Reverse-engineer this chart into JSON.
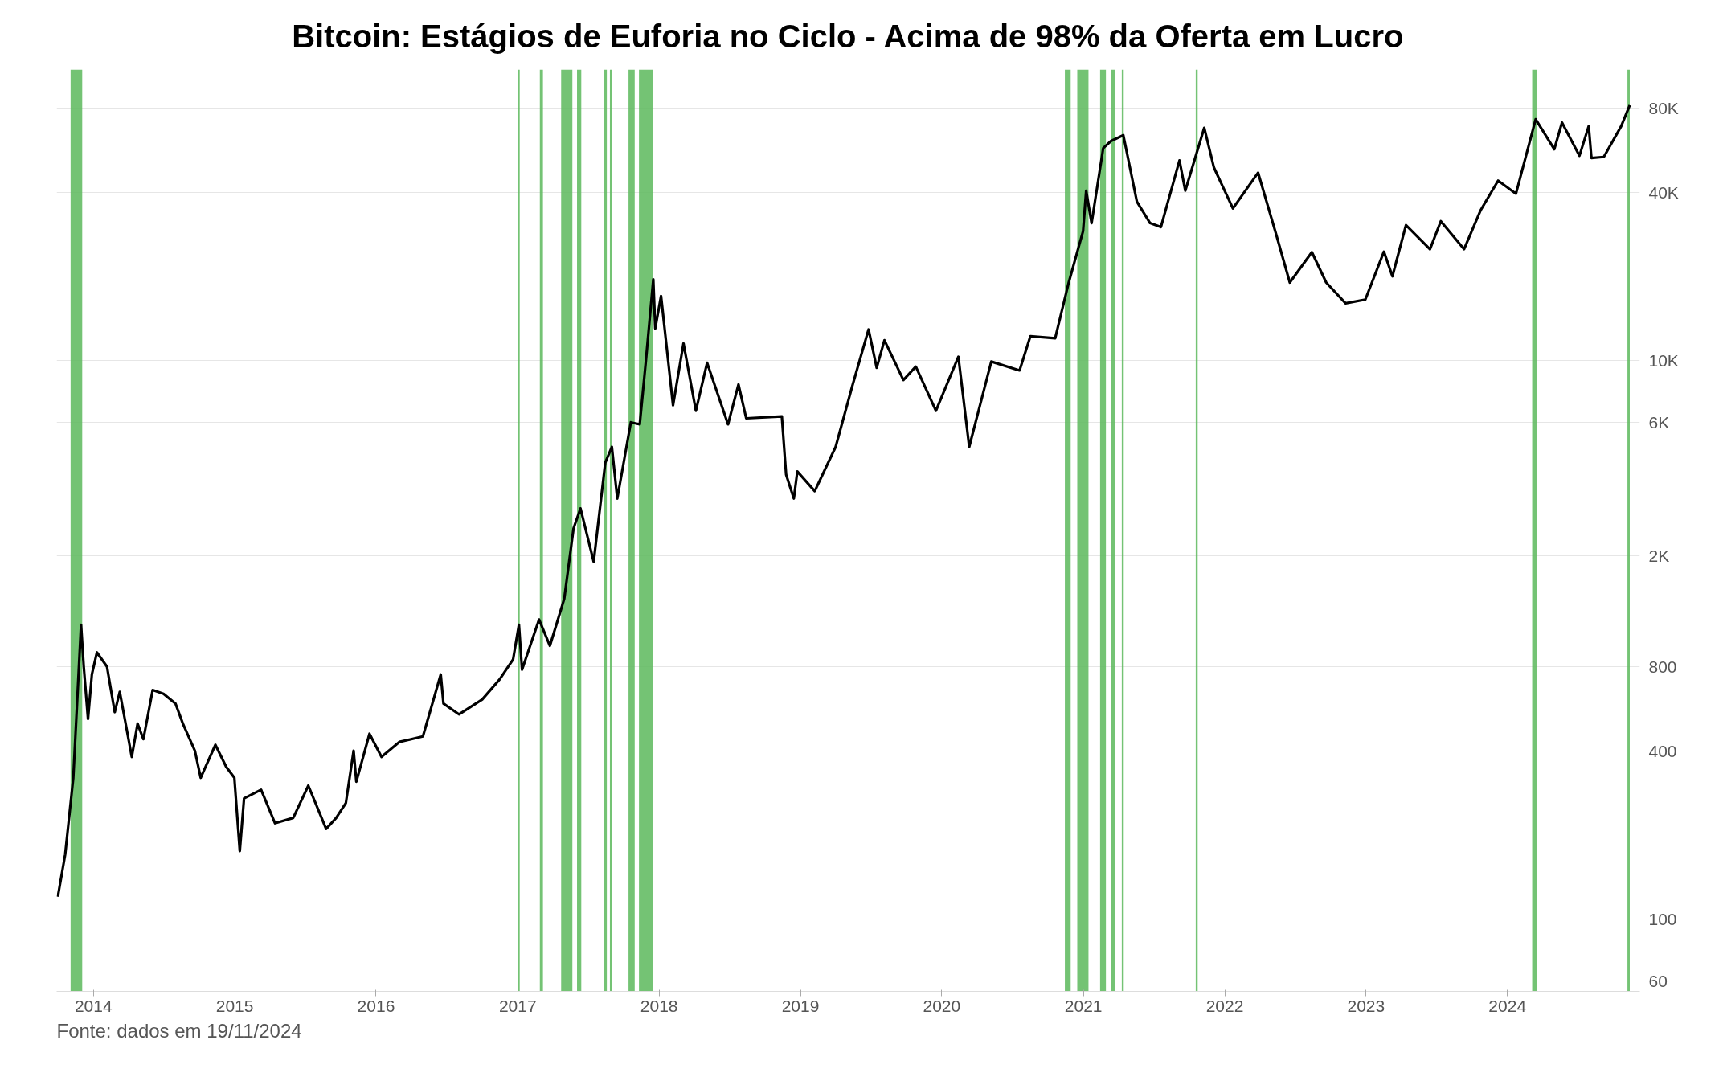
{
  "chart_data": {
    "type": "line",
    "title": "Bitcoin: Estágios de Euforia no Ciclo - Acima de 98% da Oferta em Lucro",
    "annotations": [
      "Fonte: dados em 19/11/2024"
    ],
    "log": "y",
    "grid": "y",
    "xlim": [
      "2013-09-28",
      "2024-12-08"
    ],
    "xticks": [
      {
        "value": "2014-01-01",
        "label": "2014"
      },
      {
        "value": "2015-01-01",
        "label": "2015"
      },
      {
        "value": "2016-01-01",
        "label": "2016"
      },
      {
        "value": "2017-01-01",
        "label": "2017"
      },
      {
        "value": "2018-01-01",
        "label": "2018"
      },
      {
        "value": "2019-01-01",
        "label": "2019"
      },
      {
        "value": "2020-01-01",
        "label": "2020"
      },
      {
        "value": "2021-01-01",
        "label": "2021"
      },
      {
        "value": "2022-01-01",
        "label": "2022"
      },
      {
        "value": "2023-01-01",
        "label": "2023"
      },
      {
        "value": "2024-01-01",
        "label": "2024"
      }
    ],
    "ylim": [
      55,
      110000
    ],
    "yticks": [
      60,
      100,
      400,
      800,
      {
        "value": 2000,
        "label": "2K"
      },
      {
        "value": 6000,
        "label": "6K"
      },
      {
        "value": 10000,
        "label": "10K"
      },
      {
        "value": 40000,
        "label": "40K"
      },
      {
        "value": 80000,
        "label": "80K"
      }
    ],
    "bands": [
      {
        "axis": "x",
        "from": "2013-11-03",
        "to": "2013-12-03",
        "color": "#5cb85c"
      },
      {
        "axis": "x",
        "from": "2017-01-01",
        "to": "2017-01-06",
        "color": "#5cb85c"
      },
      {
        "axis": "x",
        "from": "2017-02-27",
        "to": "2017-03-07",
        "color": "#5cb85c"
      },
      {
        "axis": "x",
        "from": "2017-04-23",
        "to": "2017-05-22",
        "color": "#5cb85c"
      },
      {
        "axis": "x",
        "from": "2017-06-03",
        "to": "2017-06-14",
        "color": "#5cb85c"
      },
      {
        "axis": "x",
        "from": "2017-08-11",
        "to": "2017-08-19",
        "color": "#5cb85c"
      },
      {
        "axis": "x",
        "from": "2017-08-27",
        "to": "2017-09-01",
        "color": "#5cb85c"
      },
      {
        "axis": "x",
        "from": "2017-10-14",
        "to": "2017-10-30",
        "color": "#5cb85c"
      },
      {
        "axis": "x",
        "from": "2017-11-10",
        "to": "2017-12-17",
        "color": "#5cb85c"
      },
      {
        "axis": "x",
        "from": "2020-11-14",
        "to": "2020-11-29",
        "color": "#5cb85c"
      },
      {
        "axis": "x",
        "from": "2020-12-16",
        "to": "2021-01-14",
        "color": "#5cb85c"
      },
      {
        "axis": "x",
        "from": "2021-02-13",
        "to": "2021-02-28",
        "color": "#5cb85c"
      },
      {
        "axis": "x",
        "from": "2021-03-14",
        "to": "2021-03-23",
        "color": "#5cb85c"
      },
      {
        "axis": "x",
        "from": "2021-04-10",
        "to": "2021-04-15",
        "color": "#5cb85c"
      },
      {
        "axis": "x",
        "from": "2021-10-18",
        "to": "2021-10-23",
        "color": "#5cb85c"
      },
      {
        "axis": "x",
        "from": "2024-03-05",
        "to": "2024-03-18",
        "color": "#5cb85c"
      },
      {
        "axis": "x",
        "from": "2024-11-06",
        "to": "2024-11-12",
        "color": "#5cb85c"
      }
    ],
    "series": [
      {
        "color": "#000000",
        "x": [
          "2013-10-01",
          "2013-10-20",
          "2013-11-10",
          "2013-11-20",
          "2013-11-30",
          "2013-12-07",
          "2013-12-18",
          "2013-12-28",
          "2014-01-10",
          "2014-02-05",
          "2014-02-25",
          "2014-03-10",
          "2014-04-10",
          "2014-04-25",
          "2014-05-10",
          "2014-06-03",
          "2014-07-01",
          "2014-08-01",
          "2014-08-20",
          "2014-09-20",
          "2014-10-05",
          "2014-11-12",
          "2014-12-10",
          "2014-12-31",
          "2015-01-14",
          "2015-01-25",
          "2015-03-10",
          "2015-04-15",
          "2015-06-01",
          "2015-07-10",
          "2015-08-25",
          "2015-09-20",
          "2015-10-15",
          "2015-11-04",
          "2015-11-11",
          "2015-12-15",
          "2016-01-15",
          "2016-03-01",
          "2016-05-01",
          "2016-06-16",
          "2016-06-23",
          "2016-08-02",
          "2016-10-01",
          "2016-11-15",
          "2016-12-20",
          "2017-01-04",
          "2017-01-12",
          "2017-02-25",
          "2017-03-25",
          "2017-05-01",
          "2017-05-25",
          "2017-06-12",
          "2017-07-16",
          "2017-08-15",
          "2017-09-01",
          "2017-09-15",
          "2017-10-20",
          "2017-11-12",
          "2017-11-28",
          "2017-12-17",
          "2017-12-22",
          "2018-01-06",
          "2018-02-06",
          "2018-03-05",
          "2018-04-06",
          "2018-05-05",
          "2018-06-28",
          "2018-07-25",
          "2018-08-14",
          "2018-11-14",
          "2018-11-25",
          "2018-12-15",
          "2018-12-24",
          "2019-02-07",
          "2019-04-02",
          "2019-05-14",
          "2019-06-26",
          "2019-07-17",
          "2019-08-06",
          "2019-09-24",
          "2019-10-26",
          "2019-12-17",
          "2020-02-13",
          "2020-03-12",
          "2020-05-08",
          "2020-07-20",
          "2020-08-17",
          "2020-10-20",
          "2020-11-24",
          "2020-12-31",
          "2021-01-08",
          "2021-01-22",
          "2021-02-21",
          "2021-03-13",
          "2021-04-14",
          "2021-05-19",
          "2021-06-22",
          "2021-07-20",
          "2021-09-06",
          "2021-09-21",
          "2021-11-09",
          "2021-12-04",
          "2022-01-22",
          "2022-03-28",
          "2022-05-12",
          "2022-06-18",
          "2022-08-14",
          "2022-09-20",
          "2022-11-09",
          "2022-12-30",
          "2023-02-16",
          "2023-03-10",
          "2023-04-14",
          "2023-06-15",
          "2023-07-13",
          "2023-09-11",
          "2023-10-24",
          "2023-12-08",
          "2024-01-23",
          "2024-03-14",
          "2024-05-01",
          "2024-05-21",
          "2024-07-05",
          "2024-07-29",
          "2024-08-05",
          "2024-09-06",
          "2024-10-21",
          "2024-11-12"
        ],
        "values": [
          120,
          170,
          320,
          600,
          1130,
          800,
          520,
          750,
          900,
          800,
          550,
          650,
          380,
          500,
          440,
          660,
          640,
          590,
          500,
          400,
          320,
          420,
          350,
          320,
          175,
          270,
          290,
          220,
          230,
          300,
          210,
          230,
          260,
          400,
          310,
          460,
          380,
          430,
          450,
          750,
          590,
          540,
          610,
          720,
          850,
          1130,
          780,
          1180,
          950,
          1400,
          2500,
          2950,
          1900,
          4300,
          4900,
          3200,
          6000,
          5900,
          10000,
          19500,
          13000,
          17000,
          6900,
          11500,
          6600,
          9800,
          5900,
          8200,
          6200,
          6300,
          3900,
          3200,
          4000,
          3400,
          4900,
          8000,
          12900,
          9400,
          11800,
          8500,
          9500,
          6600,
          10300,
          4900,
          9900,
          9200,
          12200,
          12000,
          19000,
          29000,
          40500,
          31000,
          57500,
          61000,
          64000,
          37000,
          31000,
          30000,
          52000,
          40500,
          68000,
          49000,
          35000,
          47000,
          28800,
          19000,
          24400,
          19000,
          16000,
          16500,
          24500,
          20000,
          30500,
          25000,
          31500,
          25000,
          34500,
          44000,
          39500,
          73000,
          57000,
          71000,
          54000,
          69000,
          53000,
          53500,
          69000,
          82000
        ]
      }
    ]
  }
}
